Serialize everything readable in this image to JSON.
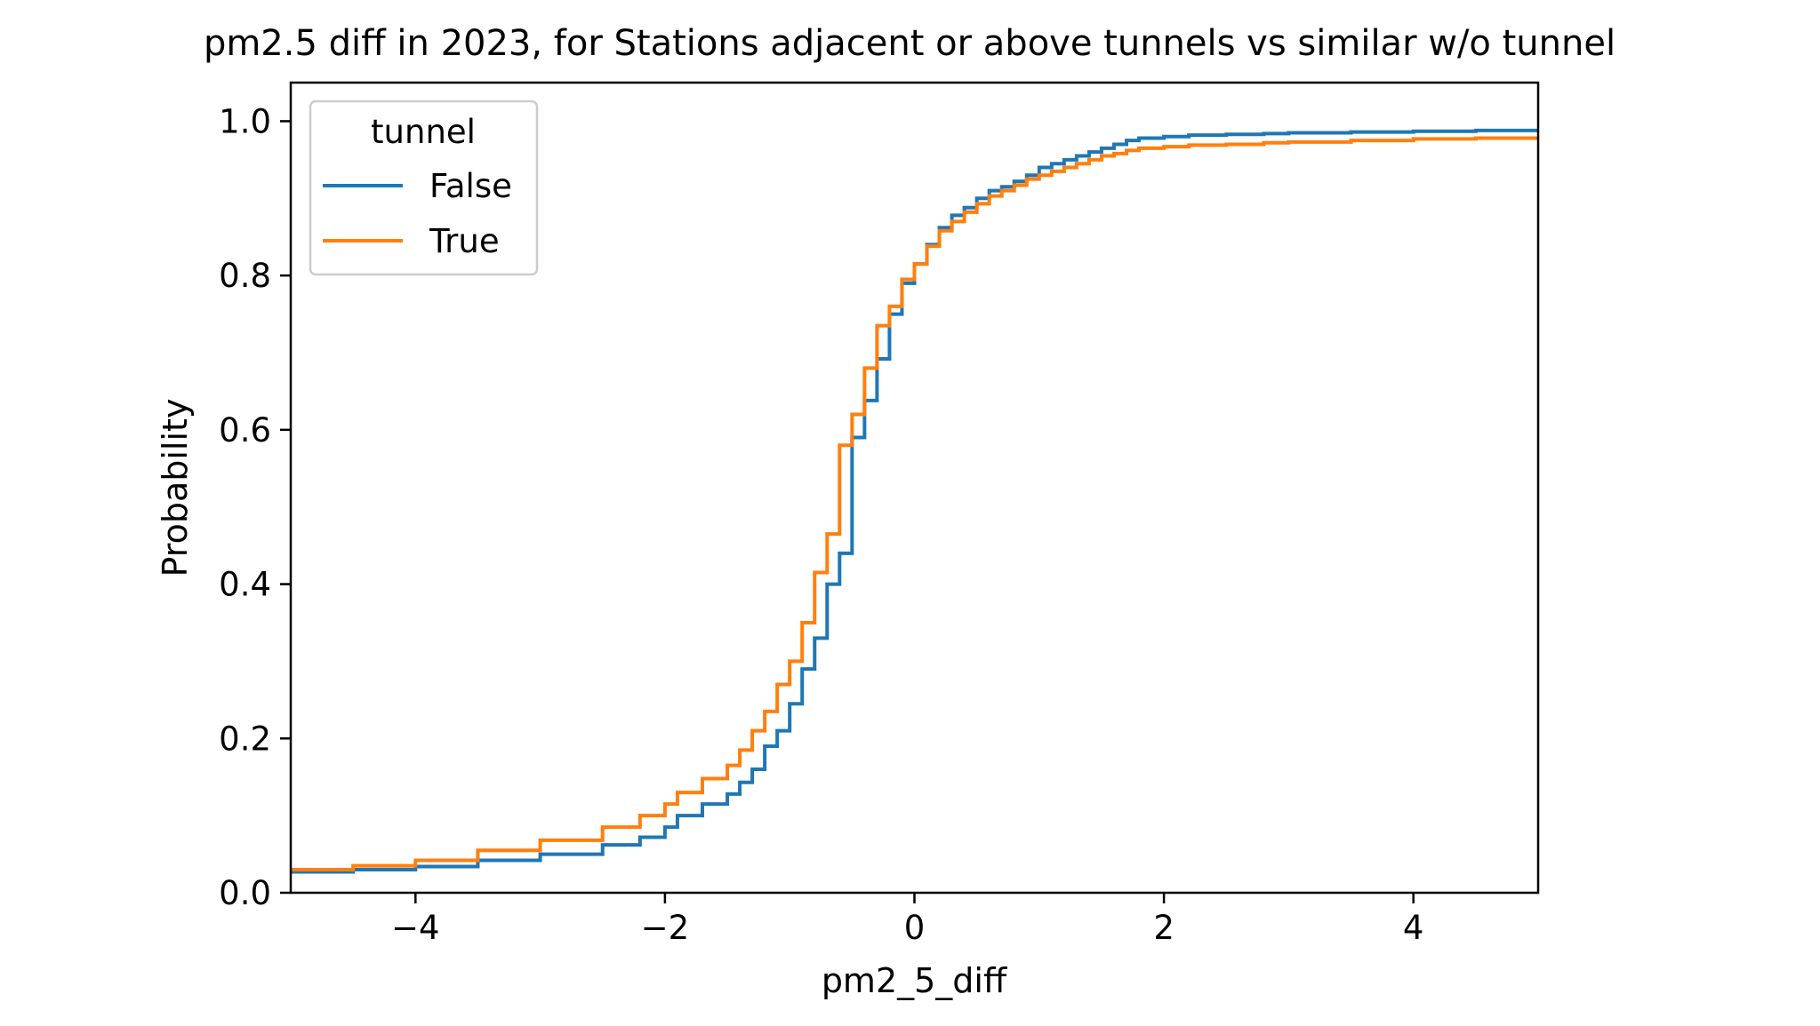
{
  "chart_data": {
    "type": "line",
    "step": true,
    "title": "pm2.5 diff in 2023, for Stations adjacent or above tunnels vs similar w/o tunnel",
    "xlabel": "pm2_5_diff",
    "ylabel": "Probability",
    "xlim": [
      -5,
      5
    ],
    "ylim": [
      0,
      1.05
    ],
    "xticks": [
      -4,
      -2,
      0,
      2,
      4
    ],
    "xtick_labels": [
      "−4",
      "−2",
      "0",
      "2",
      "4"
    ],
    "yticks": [
      0.0,
      0.2,
      0.4,
      0.6,
      0.8,
      1.0
    ],
    "ytick_labels": [
      "0.0",
      "0.2",
      "0.4",
      "0.6",
      "0.8",
      "1.0"
    ],
    "grid": false,
    "legend": {
      "title": "tunnel",
      "position": "top-left"
    },
    "series": [
      {
        "name": "False",
        "color": "#1f77b4",
        "x": [
          -5.0,
          -4.5,
          -4.0,
          -3.5,
          -3.0,
          -2.5,
          -2.2,
          -2.0,
          -1.9,
          -1.7,
          -1.5,
          -1.4,
          -1.3,
          -1.2,
          -1.1,
          -1.0,
          -0.9,
          -0.8,
          -0.7,
          -0.6,
          -0.5,
          -0.4,
          -0.3,
          -0.2,
          -0.1,
          0.0,
          0.1,
          0.2,
          0.3,
          0.4,
          0.5,
          0.6,
          0.7,
          0.8,
          0.9,
          1.0,
          1.1,
          1.2,
          1.3,
          1.4,
          1.5,
          1.6,
          1.7,
          1.8,
          2.0,
          2.2,
          2.5,
          2.8,
          3.0,
          3.5,
          4.0,
          4.5,
          5.0
        ],
        "y": [
          0.027,
          0.03,
          0.034,
          0.042,
          0.05,
          0.062,
          0.072,
          0.085,
          0.1,
          0.115,
          0.128,
          0.143,
          0.16,
          0.19,
          0.21,
          0.245,
          0.29,
          0.33,
          0.4,
          0.44,
          0.59,
          0.638,
          0.692,
          0.75,
          0.79,
          0.815,
          0.84,
          0.862,
          0.878,
          0.888,
          0.9,
          0.91,
          0.915,
          0.922,
          0.93,
          0.94,
          0.945,
          0.95,
          0.955,
          0.96,
          0.965,
          0.97,
          0.975,
          0.978,
          0.98,
          0.982,
          0.983,
          0.984,
          0.985,
          0.986,
          0.987,
          0.988,
          0.989
        ]
      },
      {
        "name": "True",
        "color": "#ff7f0e",
        "x": [
          -5.0,
          -4.5,
          -4.0,
          -3.5,
          -3.0,
          -2.5,
          -2.2,
          -2.0,
          -1.9,
          -1.7,
          -1.5,
          -1.4,
          -1.3,
          -1.2,
          -1.1,
          -1.0,
          -0.9,
          -0.8,
          -0.7,
          -0.6,
          -0.5,
          -0.4,
          -0.3,
          -0.2,
          -0.1,
          0.0,
          0.1,
          0.2,
          0.3,
          0.4,
          0.5,
          0.6,
          0.7,
          0.8,
          0.9,
          1.0,
          1.1,
          1.2,
          1.3,
          1.4,
          1.5,
          1.6,
          1.7,
          1.8,
          2.0,
          2.2,
          2.5,
          2.8,
          3.0,
          3.5,
          4.0,
          4.5,
          5.0
        ],
        "y": [
          0.03,
          0.035,
          0.042,
          0.055,
          0.068,
          0.085,
          0.1,
          0.115,
          0.13,
          0.148,
          0.165,
          0.185,
          0.21,
          0.235,
          0.27,
          0.3,
          0.35,
          0.415,
          0.465,
          0.58,
          0.62,
          0.68,
          0.735,
          0.76,
          0.795,
          0.815,
          0.838,
          0.858,
          0.87,
          0.882,
          0.893,
          0.903,
          0.91,
          0.917,
          0.925,
          0.93,
          0.935,
          0.94,
          0.945,
          0.95,
          0.955,
          0.958,
          0.962,
          0.965,
          0.967,
          0.969,
          0.97,
          0.972,
          0.973,
          0.975,
          0.977,
          0.978,
          0.979
        ]
      }
    ]
  }
}
